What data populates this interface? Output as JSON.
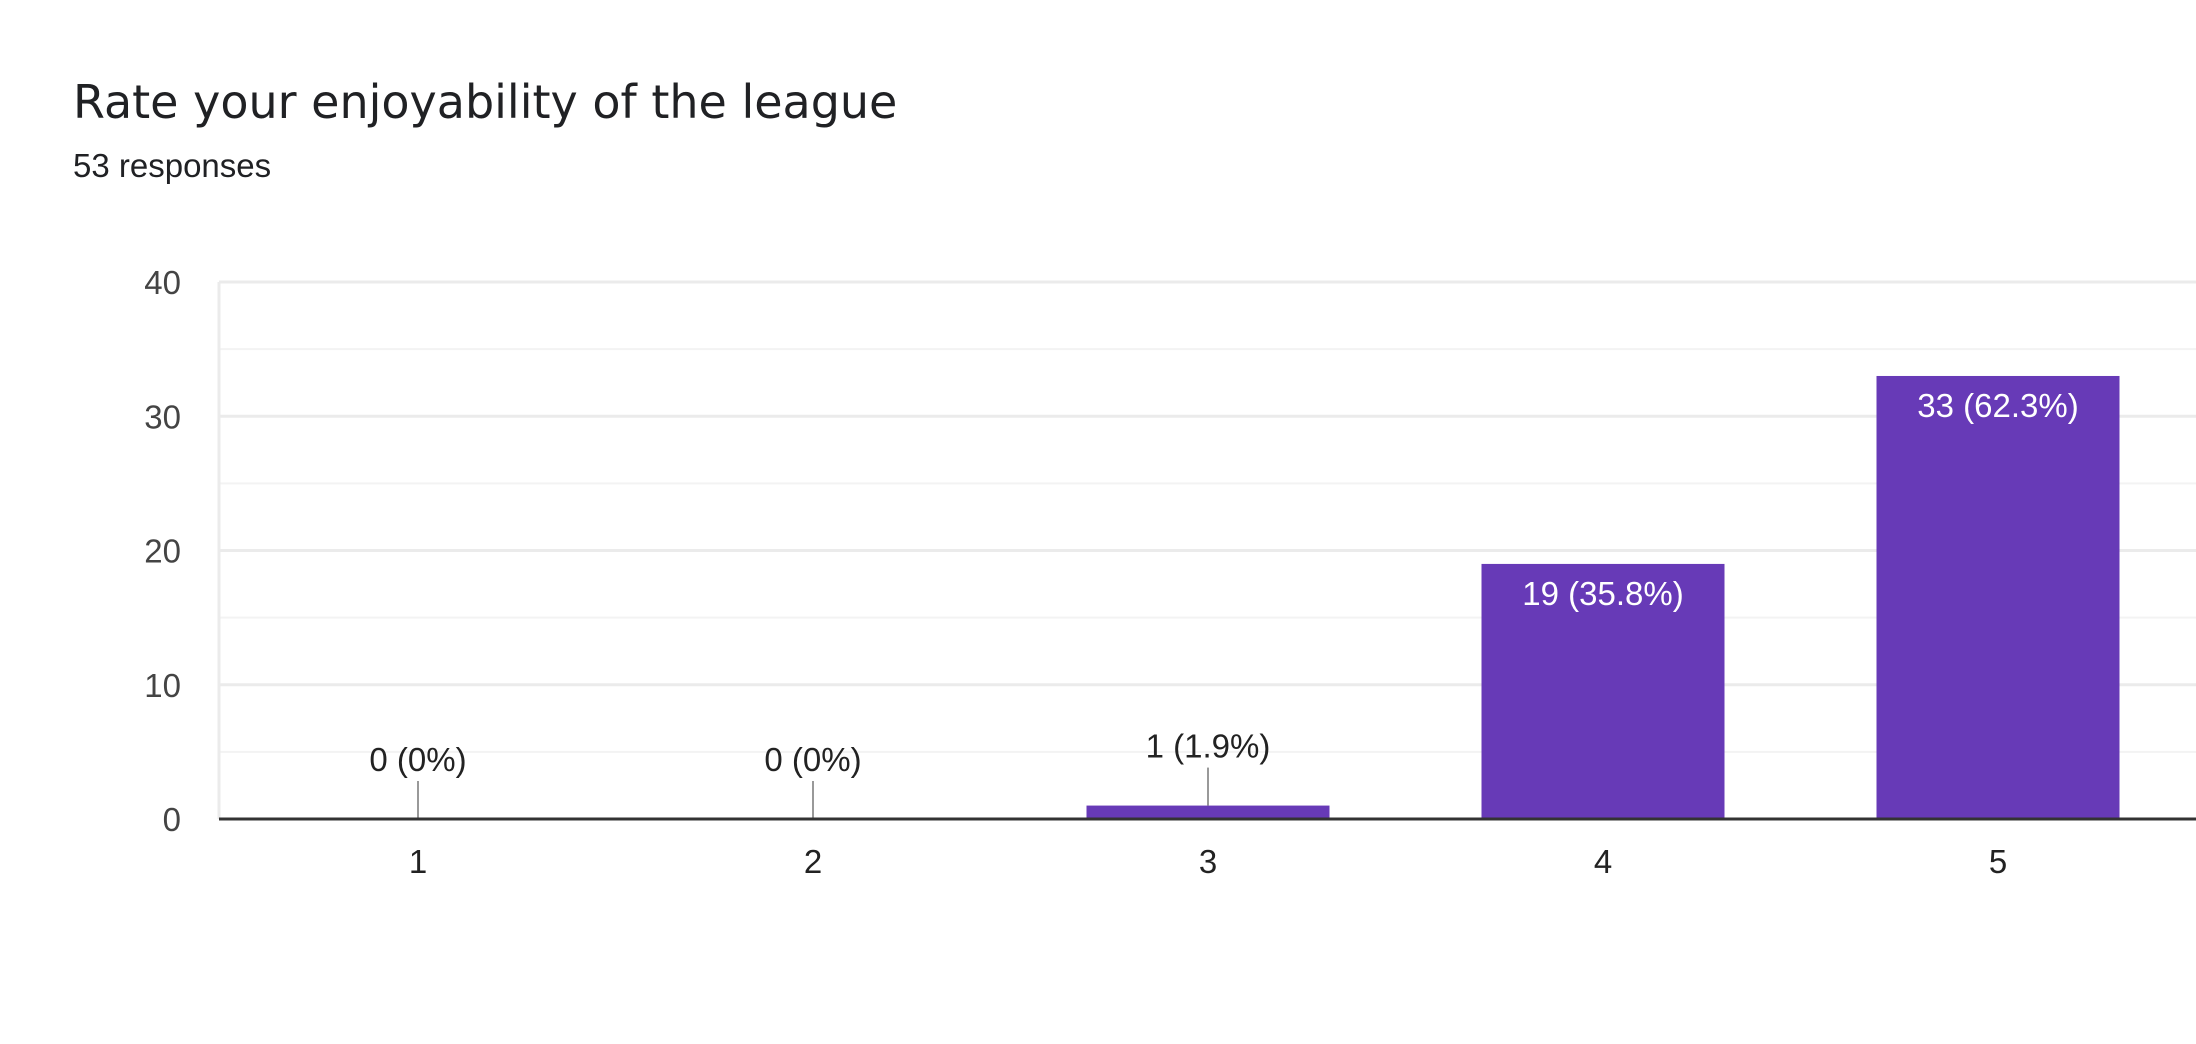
{
  "header": {
    "title": "Rate your enjoyability of the league",
    "responses": "53 responses"
  },
  "chart_data": {
    "type": "bar",
    "title": "Rate your enjoyability of the league",
    "subtitle": "53 responses",
    "categories": [
      "1",
      "2",
      "3",
      "4",
      "5"
    ],
    "values": [
      0,
      0,
      1,
      19,
      33
    ],
    "data_labels": [
      "0 (0%)",
      "0 (0%)",
      "1 (1.9%)",
      "19 (35.8%)",
      "33 (62.3%)"
    ],
    "xlabel": "",
    "ylabel": "",
    "ylim": [
      0,
      40
    ],
    "yticks": [
      0,
      10,
      20,
      30,
      40
    ],
    "grid": true,
    "legend": "none",
    "bar_color": "#673ab7"
  }
}
